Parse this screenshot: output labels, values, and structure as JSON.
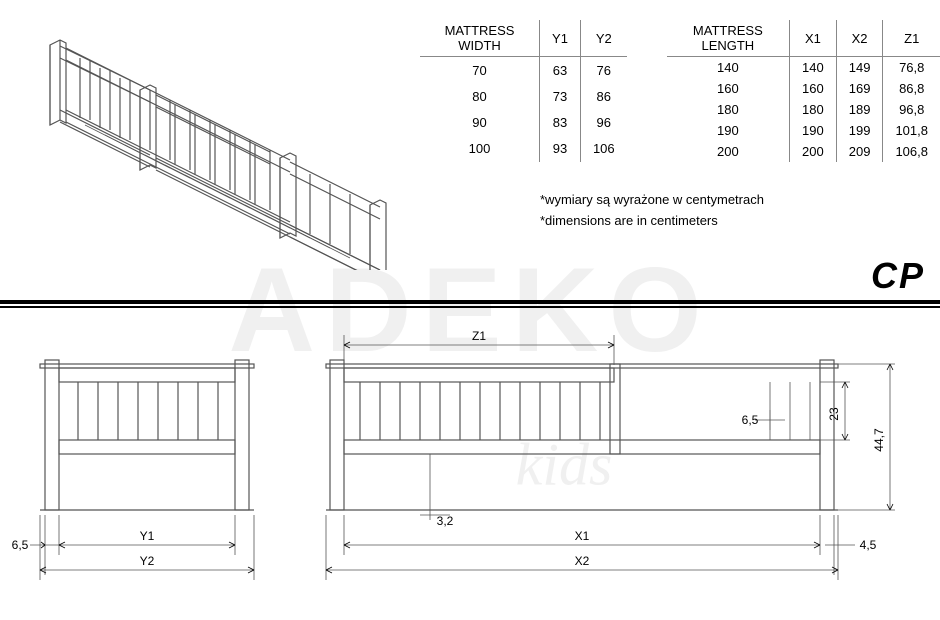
{
  "watermark": {
    "main": "ADEKO",
    "sub": "kids"
  },
  "logo": "CP",
  "table1": {
    "headers": [
      "MATTRESS WIDTH",
      "Y1",
      "Y2"
    ],
    "rows": [
      [
        "70",
        "63",
        "76"
      ],
      [
        "80",
        "73",
        "86"
      ],
      [
        "90",
        "83",
        "96"
      ],
      [
        "100",
        "93",
        "106"
      ]
    ]
  },
  "table2": {
    "headers": [
      "MATTRESS LENGTH",
      "X1",
      "X2",
      "Z1"
    ],
    "rows": [
      [
        "140",
        "140",
        "149",
        "76,8"
      ],
      [
        "160",
        "160",
        "169",
        "86,8"
      ],
      [
        "180",
        "180",
        "189",
        "96,8"
      ],
      [
        "190",
        "190",
        "199",
        "101,8"
      ],
      [
        "200",
        "200",
        "209",
        "106,8"
      ]
    ]
  },
  "notes": {
    "line1": "*wymiary są wyrażone w centymetrach",
    "line2": "*dimensions are in centimeters"
  },
  "dims": {
    "z1": "Z1",
    "x1": "X1",
    "x2": "X2",
    "y1": "Y1",
    "y2": "Y2",
    "post_width_left": "6,5",
    "post_width_right": "4,5",
    "slat_gap": "6,5",
    "rail_h": "23",
    "total_h": "44,7",
    "base_h": "3,2"
  },
  "colors": {
    "stroke": "#555555",
    "stroke_dark": "#000000",
    "bg": "#ffffff",
    "watermark": "#f0f0f0"
  }
}
